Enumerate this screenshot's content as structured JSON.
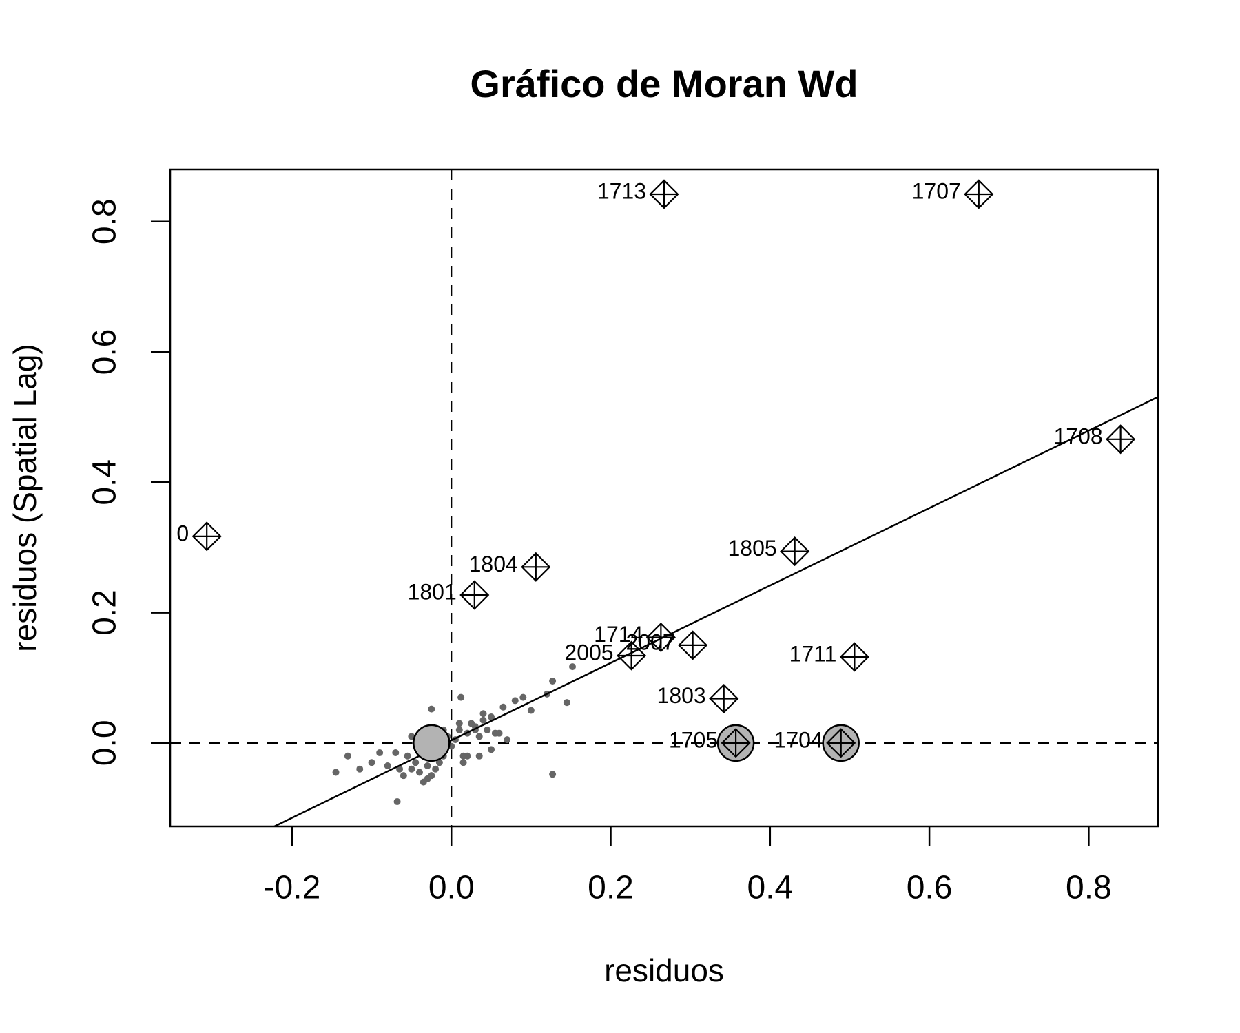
{
  "chart_data": {
    "type": "scatter",
    "title": "Gráfico de Moran Wd",
    "x_label": "residuos",
    "y_label": "residuos (Spatial Lag)",
    "xlim": [
      -0.353,
      0.887
    ],
    "ylim": [
      -0.128,
      0.88
    ],
    "xticks": [
      -0.2,
      {
        "value": 0,
        "label": "0.0"
      },
      0.2,
      0.4,
      0.6,
      0.8
    ],
    "yticks": [
      {
        "value": 0,
        "label": "0.0"
      },
      0.2,
      0.4,
      0.6,
      0.8
    ],
    "hline": 0,
    "vline": 0,
    "regression": {
      "slope": 0.594,
      "intercept": 0.004
    },
    "cloud": {
      "color": "#666666",
      "x": [
        -0.05,
        -0.045,
        -0.04,
        -0.035,
        -0.03,
        -0.025,
        -0.02,
        -0.015,
        -0.01,
        -0.005,
        0,
        0.005,
        0.01,
        0.015,
        0.02,
        0.025,
        0.03,
        0.035,
        0.04,
        0.045,
        0.05,
        -0.06,
        -0.055,
        -0.05,
        -0.04,
        -0.03,
        -0.02,
        -0.01,
        0.01,
        0.02,
        0.03,
        0.04,
        0.05,
        0.06,
        -0.065,
        -0.07,
        0.065,
        0.07,
        0.08,
        0.09,
        0.1,
        0.12,
        0.127,
        0.152,
        0.145,
        0.127,
        -0.068,
        0.012,
        -0.025,
        -0.145,
        -0.13,
        -0.09,
        -0.115,
        -0.1,
        -0.08,
        0.055,
        0.035,
        -0.035,
        -0.045,
        0.015
      ],
      "y": [
        -0.04,
        -0.03,
        -0.045,
        -0.02,
        -0.035,
        -0.05,
        -0.01,
        -0.03,
        -0.02,
        0.01,
        -0.005,
        0.005,
        0.02,
        -0.02,
        0.015,
        0.03,
        0.02,
        0.01,
        0.035,
        0.02,
        0.04,
        -0.05,
        -0.02,
        0.01,
        0.015,
        -0.055,
        -0.04,
        0.02,
        0.03,
        -0.02,
        0.025,
        0.045,
        -0.01,
        0.015,
        -0.04,
        -0.015,
        0.055,
        0.005,
        0.065,
        0.07,
        0.05,
        0.075,
        0.095,
        0.117,
        0.062,
        -0.048,
        -0.09,
        0.07,
        0.052,
        -0.045,
        -0.02,
        -0.015,
        -0.04,
        -0.03,
        -0.035,
        0.015,
        -0.02,
        -0.06,
        0.0,
        -0.03
      ]
    },
    "influential": {
      "color": "#b3b3b3",
      "x": [
        -0.025,
        0.357,
        0.489
      ],
      "y": [
        0,
        0,
        0
      ]
    },
    "labeled": {
      "labels": [
        "1713",
        "1707",
        "1708",
        "0",
        "1804",
        "1801",
        "1805",
        "1714",
        "2007",
        "2005",
        "1711",
        "1803",
        "1705",
        "1704"
      ],
      "x": [
        0.267,
        0.662,
        0.84,
        -0.307,
        0.106,
        0.029,
        0.431,
        0.263,
        0.303,
        0.226,
        0.506,
        0.342,
        0.357,
        0.489
      ],
      "y": [
        0.842,
        0.842,
        0.466,
        0.317,
        0.27,
        0.227,
        0.294,
        0.162,
        0.15,
        0.134,
        0.132,
        0.068,
        0,
        0
      ]
    }
  }
}
